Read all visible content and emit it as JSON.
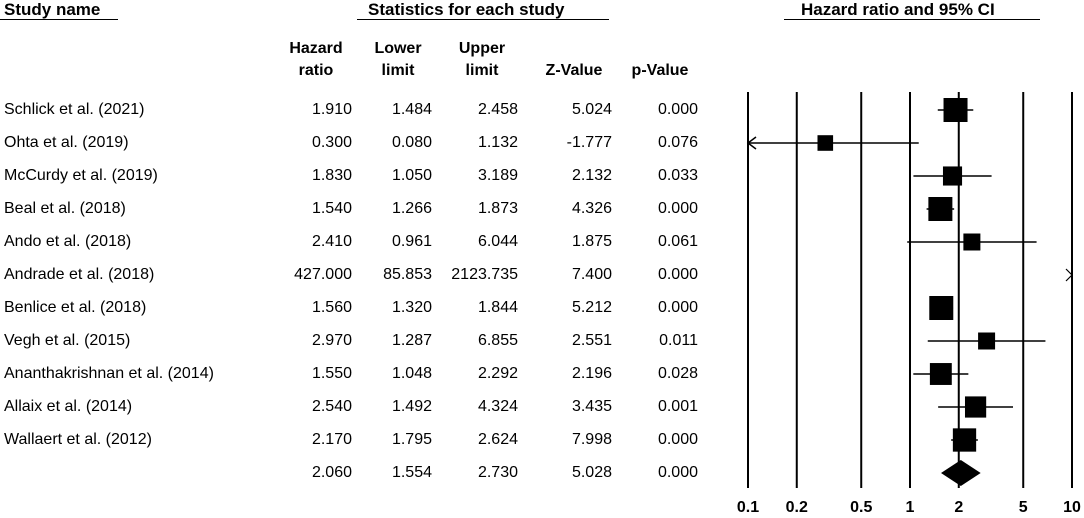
{
  "headers": {
    "study_name": "Study name",
    "stats": "Statistics for each study",
    "plot": "Hazard ratio and 95% CI",
    "hazard_ratio": [
      "Hazard",
      "ratio"
    ],
    "lower_limit": [
      "Lower",
      "limit"
    ],
    "upper_limit": [
      "Upper",
      "limit"
    ],
    "z_value": "Z-Value",
    "p_value": "p-Value"
  },
  "chart_data": {
    "type": "forest",
    "x_scale": "log",
    "xlim": [
      0.1,
      10
    ],
    "x_ticks": [
      {
        "value": 0.1,
        "label": "0.1"
      },
      {
        "value": 0.2,
        "label": "0.2"
      },
      {
        "value": 0.5,
        "label": "0.5"
      },
      {
        "value": 1,
        "label": "1"
      },
      {
        "value": 2,
        "label": "2"
      },
      {
        "value": 5,
        "label": "5"
      },
      {
        "value": 10,
        "label": "10"
      }
    ],
    "studies": [
      {
        "name": "Schlick et al. (2021)",
        "hr": "1.910",
        "lower": "1.484",
        "upper": "2.458",
        "z": "5.024",
        "p": "0.000",
        "weight": 1.0
      },
      {
        "name": "Ohta et al. (2019)",
        "hr": "0.300",
        "lower": "0.080",
        "upper": "1.132",
        "z": "-1.777",
        "p": "0.076",
        "weight": 0.4
      },
      {
        "name": "McCurdy et al. (2019)",
        "hr": "1.830",
        "lower": "1.050",
        "upper": "3.189",
        "z": "2.132",
        "p": "0.033",
        "weight": 0.65
      },
      {
        "name": "Beal et al. (2018)",
        "hr": "1.540",
        "lower": "1.266",
        "upper": "1.873",
        "z": "4.326",
        "p": "0.000",
        "weight": 1.0
      },
      {
        "name": "Ando et al. (2018)",
        "hr": "2.410",
        "lower": "0.961",
        "upper": "6.044",
        "z": "1.875",
        "p": "0.061",
        "weight": 0.5
      },
      {
        "name": "Andrade et al. (2018)",
        "hr": "427.000",
        "lower": "85.853",
        "upper": "2123.735",
        "z": "7.400",
        "p": "0.000",
        "weight": 0.5
      },
      {
        "name": "Benlice et al. (2018)",
        "hr": "1.560",
        "lower": "1.320",
        "upper": "1.844",
        "z": "5.212",
        "p": "0.000",
        "weight": 1.0
      },
      {
        "name": "Vegh et al. (2015)",
        "hr": "2.970",
        "lower": "1.287",
        "upper": "6.855",
        "z": "2.551",
        "p": "0.011",
        "weight": 0.5
      },
      {
        "name": "Ananthakrishnan et al. (2014)",
        "hr": "1.550",
        "lower": "1.048",
        "upper": "2.292",
        "z": "2.196",
        "p": "0.028",
        "weight": 0.85
      },
      {
        "name": "Allaix et al. (2014)",
        "hr": "2.540",
        "lower": "1.492",
        "upper": "4.324",
        "z": "3.435",
        "p": "0.001",
        "weight": 0.8
      },
      {
        "name": "Wallaert et al. (2012)",
        "hr": "2.170",
        "lower": "1.795",
        "upper": "2.624",
        "z": "7.998",
        "p": "0.000",
        "weight": 0.95
      }
    ],
    "summary": {
      "hr": "2.060",
      "lower": "1.554",
      "upper": "2.730",
      "z": "5.028",
      "p": "0.000"
    }
  }
}
